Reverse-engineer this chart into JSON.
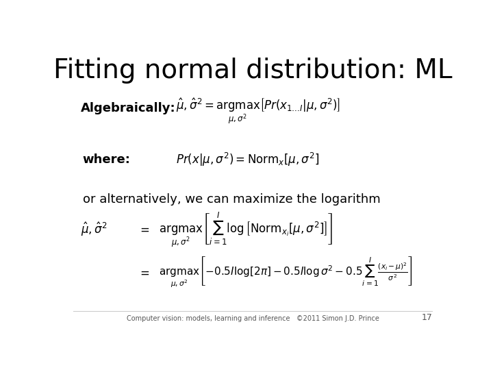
{
  "title": "Fitting normal distribution: ML",
  "title_fontsize": 28,
  "bg_color": "#ffffff",
  "text_color": "#000000",
  "footer_text": "Computer vision: models, learning and inference   ©2011 Simon J.D. Prince",
  "footer_page": "17",
  "label_algebraically": "Algebraically:",
  "label_where": "where:",
  "label_alternatively": "or alternatively, we can maximize the logarithm",
  "eq1": "$\\hat{\\mu}, \\hat{\\sigma}^2 = \\underset{\\mu, \\sigma^2}{\\mathrm{argmax}} \\left[ Pr(x_{1 \\ldots I} | \\mu, \\sigma^2) \\right]$",
  "eq2": "$Pr(x|\\mu, \\sigma^2) = \\mathrm{Norm}_x[\\mu, \\sigma^2]$",
  "eq3a_lhs": "$\\hat{\\mu}, \\hat{\\sigma}^2$",
  "eq3a_eq": "$=$",
  "eq3a_rhs": "$\\underset{\\mu, \\sigma^2}{\\mathrm{argmax}} \\left[ \\sum_{i=1}^{I} \\log \\left[ \\mathrm{Norm}_{x_i}[\\mu, \\sigma^2] \\right] \\right]$",
  "eq3b_eq": "$=$",
  "eq3b_rhs": "$\\underset{\\mu, \\sigma^2}{\\mathrm{argmax}} \\left[ -0.5I\\log[2\\pi] - 0.5I\\log\\sigma^2 - 0.5\\sum_{i=1}^{I} \\frac{(x_i - \\mu)^2}{\\sigma^2} \\right]$"
}
